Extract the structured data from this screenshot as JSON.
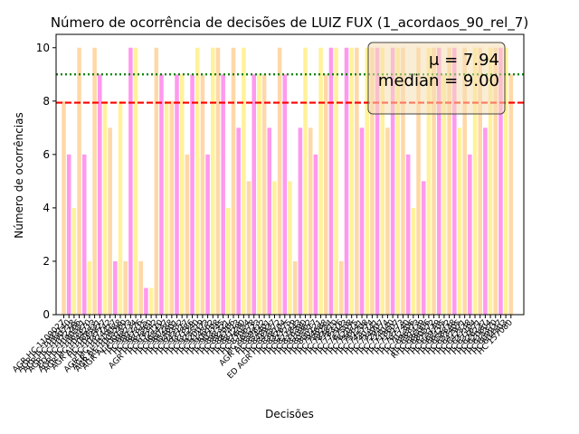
{
  "chart_data": {
    "type": "bar",
    "title": "Número de ocorrência de decisões de LUIZ FUX (1_acordaos_90_rel_7)",
    "xlabel": "Decisões",
    "ylabel": "Número de ocorrências",
    "ylim": [
      0,
      10.5
    ],
    "yticks": [
      0,
      2,
      4,
      6,
      8,
      10
    ],
    "grid": false,
    "bar_colors": [
      "#ffd8a8",
      "#ff99ee",
      "#fff29a"
    ],
    "values": [
      8,
      6,
      4,
      10,
      6,
      2,
      10,
      9,
      8,
      7,
      2,
      8,
      2,
      10,
      10,
      2,
      1,
      1,
      10,
      9,
      8,
      8,
      9,
      9,
      6,
      9,
      10,
      9,
      6,
      10,
      10,
      9,
      4,
      10,
      7,
      10,
      5,
      9,
      9,
      9,
      7,
      5,
      10,
      9,
      5,
      2,
      7,
      10,
      7,
      6,
      10,
      9,
      10,
      10,
      2,
      10,
      10,
      10,
      7,
      10,
      10,
      10,
      10,
      7,
      10,
      10,
      10,
      6,
      4,
      10,
      5,
      10,
      10,
      10,
      9,
      10,
      10,
      7,
      10,
      6,
      10,
      10,
      7,
      10,
      10,
      10,
      10,
      9
    ],
    "categories": [
      "AGR HC 1109027",
      "AGR HC 1093140",
      "AGR HC 1090718",
      "AGR HC 1072266",
      "ED HC 1090551",
      "AGR HC 1065870",
      "AGR HC 1044213",
      "AGR AI 1088531",
      "HC 1043827",
      "HC 1037742",
      "AGR HC 1024417",
      "AGR AI 1019088",
      "AGR RE 1005260",
      "AGR AI 1001573",
      "HC 998234",
      "HC 991276",
      "HC 987815",
      "HC 981560",
      "AGR HC 978342",
      "HC 972110",
      "HC 965437",
      "HC 960288",
      "HC 954601",
      "HC 949352",
      "HC 943117",
      "HC 937886",
      "HC 931240",
      "HC 925519",
      "HC 920073",
      "HC 914562",
      "HC 909108",
      "HC 903745",
      "HC 898321",
      "HC 892066",
      "HC 887413",
      "HC 881290",
      "HC 876054",
      "HC 870678",
      "HC 865223",
      "AGR AI 859812",
      "HC 854401",
      "HC 848937",
      "HC 843572",
      "ED AGR HC 838104",
      "HC 832675",
      "HC 827219",
      "HC 821843",
      "HC 816390",
      "HC 810962",
      "HC 805517",
      "HC 800121",
      "HC 794688",
      "HC 789254",
      "HC 783810",
      "HC 778376",
      "HC 772943",
      "HC 767508",
      "HC 762075",
      "HC 756641",
      "HC 751208",
      "HC 745774",
      "HC 740341",
      "HC 734907",
      "HC 729474",
      "HC 724040",
      "HC 718607",
      "HC 713173",
      "HC 707740",
      "HC 702306",
      "HC 696873",
      "HC 691439",
      "RHC 686006",
      "HC 680572",
      "HC 675139",
      "HC 669705",
      "HC 664272",
      "HC 658838",
      "HC 653405",
      "HC 647971",
      "HC 642538",
      "HC 637104",
      "HC 631671",
      "HC 626237",
      "HC 620804",
      "HC 615370",
      "HC 609937",
      "HC 604503",
      "HC 157080"
    ],
    "reference_lines": [
      {
        "value": 7.94,
        "color": "#ff0000",
        "style": "dashed"
      },
      {
        "value": 9.0,
        "color": "#008000",
        "style": "dotted"
      }
    ],
    "annotation": {
      "mean_text": "μ = 7.94",
      "median_text": "median = 9.00",
      "box_color": "#f5deb3"
    }
  }
}
